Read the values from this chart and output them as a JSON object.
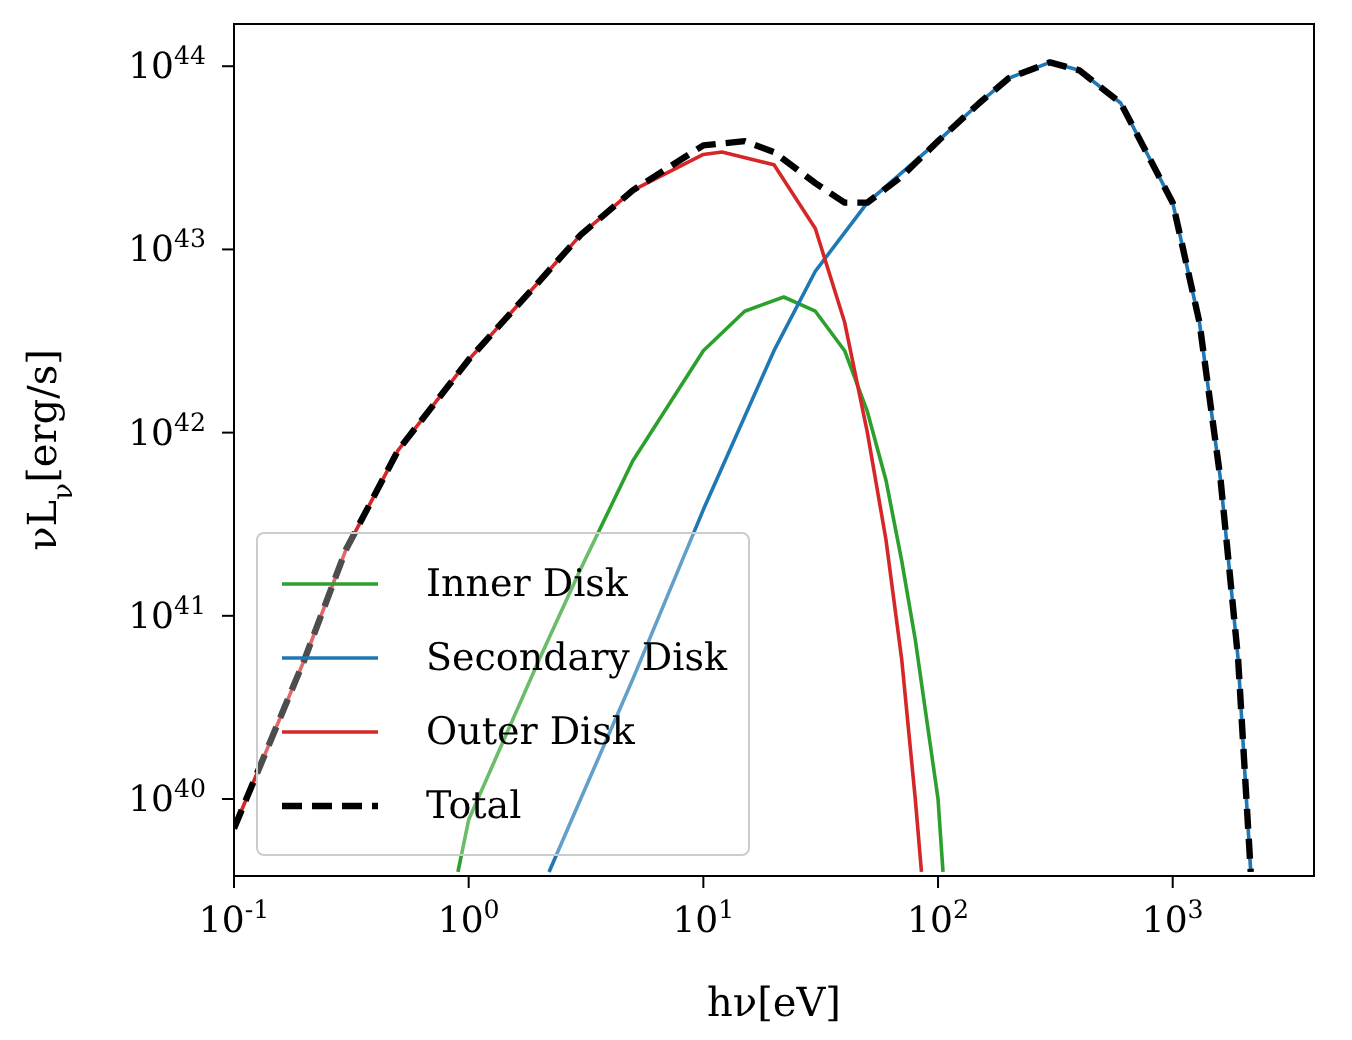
{
  "chart_data": {
    "type": "line",
    "xlabel": "hν[eV]",
    "ylabel": "νL$_{ν}$[erg/s]",
    "log": "xy",
    "grid": false,
    "legend": "bottom left",
    "marker": "none",
    "xlim": [
      0.1,
      4000
    ],
    "xticks": [
      {
        "value": 0.1,
        "label": "10$^{-1}$"
      },
      {
        "value": 1,
        "label": "10$^{0}$"
      },
      {
        "value": 10,
        "label": "10$^{1}$"
      },
      {
        "value": 100,
        "label": "10$^{2}$"
      },
      {
        "value": 1000,
        "label": "10$^{3}$"
      }
    ],
    "ylim": [
      3.8e+39,
      1.7e+44
    ],
    "yticks": [
      {
        "value": 1e+40,
        "label": "10$^{40}$"
      },
      {
        "value": 1e+41,
        "label": "10$^{41}$"
      },
      {
        "value": 1e+42,
        "label": "10$^{42}$"
      },
      {
        "value": 1e+43,
        "label": "10$^{43}$"
      },
      {
        "value": 1e+44,
        "label": "10$^{44}$"
      }
    ],
    "series": [
      {
        "name": "Inner Disk",
        "color": "#2ca02c",
        "line_style": "solid",
        "x": [
          0.9,
          1,
          2,
          3,
          5,
          10,
          15,
          22,
          30,
          40,
          50,
          60,
          70,
          80,
          100,
          105
        ],
        "values": [
          4e+39,
          7.7e+39,
          5.8e+40,
          1.8e+41,
          7e+41,
          2.8e+42,
          4.6e+42,
          5.5e+42,
          4.6e+42,
          2.8e+42,
          1.3e+42,
          5.5e+41,
          2e+41,
          7.4e+40,
          1e+40,
          4e+39
        ]
      },
      {
        "name": "Secondary Disk",
        "color": "#1f77b4",
        "line_style": "solid",
        "x": [
          2.2,
          3,
          5,
          10,
          20,
          30,
          50,
          100,
          150,
          200,
          300,
          400,
          600,
          1000,
          1300,
          1600,
          1900,
          2150
        ],
        "values": [
          4e+39,
          1e+40,
          4.5e+40,
          3.8e+41,
          2.8e+42,
          7.6e+42,
          1.8e+43,
          3.9e+43,
          6.3e+43,
          8.6e+43,
          1.05e+44,
          9.5e+43,
          6.3e+43,
          1.8e+43,
          4e+42,
          5.5e+41,
          5.8e+40,
          4e+39
        ]
      },
      {
        "name": "Outer Disk",
        "color": "#d62728",
        "line_style": "solid",
        "x": [
          0.1,
          0.2,
          0.3,
          0.5,
          1,
          2,
          3,
          5,
          10,
          12,
          20,
          30,
          40,
          50,
          60,
          70,
          80,
          85
        ],
        "values": [
          6.9e+39,
          5.8e+40,
          2.3e+41,
          8e+41,
          2.5e+42,
          6.7e+42,
          1.2e+43,
          2.1e+43,
          3.3e+43,
          3.4e+43,
          2.9e+43,
          1.3e+43,
          4e+42,
          1e+42,
          2.6e+41,
          5.8e+40,
          1e+40,
          4e+39
        ]
      },
      {
        "name": "Total",
        "color": "#000000",
        "line_style": "dashed",
        "x": [
          0.1,
          0.2,
          0.3,
          0.5,
          1,
          2,
          3,
          5,
          10,
          15,
          20,
          30,
          40,
          50,
          70,
          100,
          150,
          200,
          300,
          400,
          600,
          1000,
          1300,
          1600,
          1900,
          2150
        ],
        "values": [
          6.9e+39,
          5.8e+40,
          2.3e+41,
          8e+41,
          2.5e+42,
          6.7e+42,
          1.2e+43,
          2.1e+43,
          3.7e+43,
          3.9e+43,
          3.4e+43,
          2.3e+43,
          1.8e+43,
          1.8e+43,
          2.5e+43,
          3.9e+43,
          6.3e+43,
          8.6e+43,
          1.05e+44,
          9.5e+43,
          6.3e+43,
          1.8e+43,
          4e+42,
          5.5e+41,
          5.8e+40,
          4e+39
        ]
      }
    ]
  }
}
